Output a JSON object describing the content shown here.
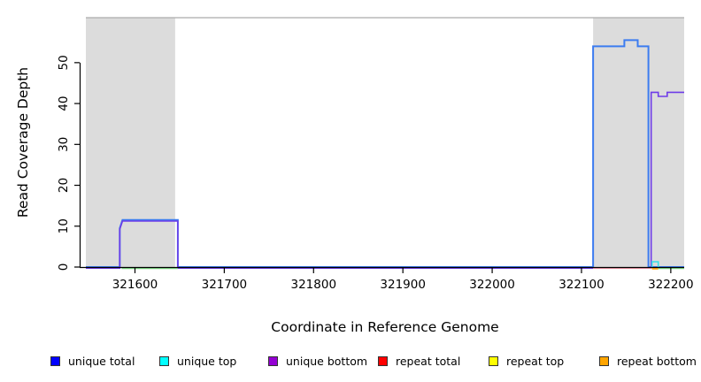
{
  "chart_data": {
    "type": "line",
    "title": "",
    "xlabel": "Coordinate in Reference Genome",
    "ylabel": "Read Coverage Depth",
    "xlim": [
      321545,
      322215
    ],
    "ylim": [
      0,
      61
    ],
    "xticks": [
      321600,
      321700,
      321800,
      321900,
      322000,
      322100,
      322200
    ],
    "yticks": [
      0,
      10,
      20,
      30,
      40,
      50
    ],
    "grid": false,
    "shaded_regions": [
      {
        "x0": 321545,
        "x1": 321645,
        "color": "#DCDCDC"
      },
      {
        "x0": 322113,
        "x1": 322215,
        "color": "#DCDCDC"
      }
    ],
    "series": [
      {
        "name": "unique total",
        "color": "#3C7CF0",
        "dy": 0,
        "width": 2,
        "segments": [
          [
            [
              321545,
              0
            ],
            [
              321583,
              0
            ],
            [
              321583,
              9.5
            ],
            [
              321586,
              11.5
            ],
            [
              321648,
              11.5
            ],
            [
              321648,
              0
            ],
            [
              322113,
              0
            ],
            [
              322113,
              54
            ],
            [
              322148,
              54
            ],
            [
              322148,
              55.5
            ],
            [
              322163,
              55.5
            ],
            [
              322163,
              54
            ],
            [
              322175,
              54
            ],
            [
              322175,
              0
            ],
            [
              322215,
              0
            ]
          ]
        ]
      },
      {
        "name": "unique bottom",
        "color": "#6E3CE8",
        "dy": 1.2,
        "width": 1.6,
        "segments": [
          [
            [
              321545,
              0
            ],
            [
              321583,
              0
            ],
            [
              321583,
              9.5
            ],
            [
              321586,
              11.5
            ],
            [
              321648,
              11.5
            ],
            [
              321648,
              0
            ],
            [
              322113,
              0
            ]
          ],
          [
            [
              322178,
              0
            ],
            [
              322178,
              43
            ],
            [
              322186,
              43
            ],
            [
              322186,
              42
            ],
            [
              322196,
              42
            ],
            [
              322196,
              43
            ],
            [
              322215,
              43
            ]
          ]
        ]
      },
      {
        "name": "repeat total",
        "color": "#E8415F",
        "dy": 0.8,
        "width": 1.6,
        "segments": [
          [
            [
              322113,
              0
            ],
            [
              322179,
              0
            ]
          ]
        ]
      },
      {
        "name": "repeat bottom",
        "color": "#FFA510",
        "dy": 1.8,
        "width": 2,
        "segments": [
          [
            [
              322179,
              0
            ],
            [
              322186,
              0
            ]
          ]
        ]
      },
      {
        "name": "green baseline",
        "color": "#7EDC85",
        "dy": 1.5,
        "width": 1.6,
        "segments": [
          [
            [
              321585,
              0
            ],
            [
              321648,
              0
            ]
          ],
          [
            [
              322186,
              0
            ],
            [
              322215,
              0
            ]
          ]
        ]
      },
      {
        "name": "unique top",
        "color": "#35DFE8",
        "dy": 0,
        "width": 1.6,
        "segments": [
          [
            [
              322179,
              0
            ],
            [
              322179,
              1.3
            ],
            [
              322186,
              1.3
            ],
            [
              322186,
              0
            ]
          ]
        ]
      },
      {
        "name": "repeat top",
        "color": "#FFFF00",
        "dy": 0,
        "width": 1.6,
        "segments": []
      }
    ],
    "legend": [
      {
        "label": "unique total",
        "color": "#0000FF"
      },
      {
        "label": "unique top",
        "color": "#00FFFF"
      },
      {
        "label": "unique bottom",
        "color": "#9400D3"
      },
      {
        "label": "repeat total",
        "color": "#FF0000"
      },
      {
        "label": "repeat top",
        "color": "#FFFF00"
      },
      {
        "label": "repeat bottom",
        "color": "#FFA500"
      }
    ]
  }
}
